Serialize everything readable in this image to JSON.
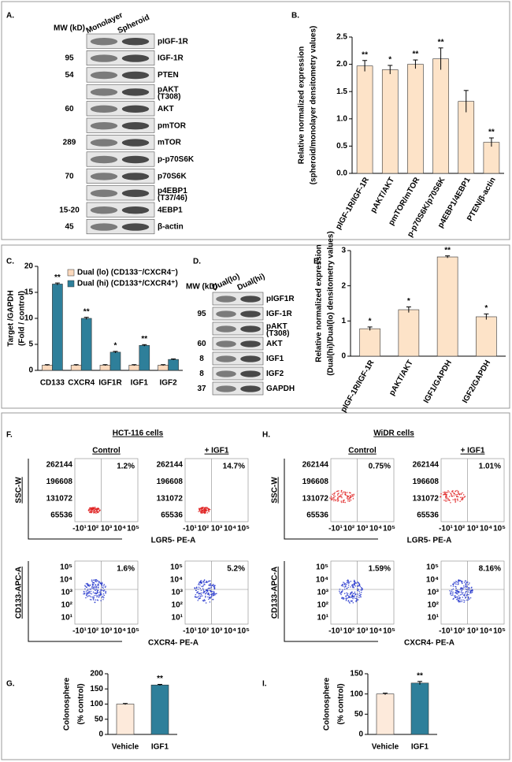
{
  "chart_data": [
    {
      "type": "bar",
      "panel": "B.",
      "y_label": "Relative normalized expression",
      "y_sublabel": "(spheroid/monolayer densitometry values)",
      "categories": [
        "pIGF-1R/IGF-1R",
        "pAKT/AKT",
        "pmTOR/mTOR",
        "p-p70S6K/p70S6K",
        "p4EBP1/4EBP1",
        "PTEN/β-actin"
      ],
      "values": [
        1.97,
        1.9,
        2.0,
        2.1,
        1.32,
        0.57
      ],
      "errors": [
        0.1,
        0.08,
        0.08,
        0.2,
        0.2,
        0.08
      ],
      "annotations": [
        "**",
        "*",
        "**",
        "**",
        null,
        "**"
      ],
      "color": "#fde3c8",
      "ylim": [
        0,
        2.5
      ],
      "yticks": [
        {
          "value": 0,
          "label": "0.0"
        },
        0.5,
        {
          "value": 1,
          "label": "1.0"
        },
        1.5,
        {
          "value": 2,
          "label": "2.0"
        },
        2.5
      ]
    },
    {
      "type": "bar",
      "panel": "C.",
      "y_label": "Target /GAPDH",
      "y_sublabel": "(Fold / control)",
      "categories": [
        "CD133",
        "CXCR4",
        "IGF1R",
        "IGF1",
        "IGF2"
      ],
      "series": [
        {
          "name": "Dual (lo) (CD133⁻/CXCR4⁻)",
          "color": "#fbd9bd",
          "values": [
            1,
            1,
            1,
            1,
            1
          ],
          "errors": [
            0.1,
            0.1,
            0.1,
            0.1,
            0.1
          ]
        },
        {
          "name": "Dual (hi) (CD133⁺/CXCR4⁺)",
          "color": "#2e7f9a",
          "values": [
            16.6,
            10,
            3.5,
            4.8,
            2.1
          ],
          "errors": [
            0.2,
            0.2,
            0.15,
            0.15,
            0.1
          ]
        }
      ],
      "annotations": [
        "**",
        "**",
        "*",
        "**",
        null
      ],
      "ylim": [
        0,
        20
      ],
      "yticks": [
        0,
        5,
        10,
        15,
        20
      ]
    },
    {
      "type": "bar",
      "panel": "E.",
      "y_label": "Relative normalized expression",
      "y_sublabel": "(Dual(hi)/Dual(lo) densitometry values)",
      "categories": [
        "pIGF-1R/IGF-1R",
        "pAKT/AKT",
        "IGF1/GAPDH",
        "IGF2/GAPDH"
      ],
      "values": [
        0.78,
        1.32,
        2.82,
        1.12
      ],
      "errors": [
        0.05,
        0.08,
        0.03,
        0.08
      ],
      "annotations": [
        "*",
        "*",
        "**",
        "*"
      ],
      "color": "#fde3c8",
      "ylim": [
        0,
        3
      ],
      "yticks": [
        0,
        1,
        2,
        3
      ]
    },
    {
      "type": "bar",
      "panel": "G.",
      "y_label": "Colonosphere",
      "y_sublabel": "(% control)",
      "categories": [
        "Vehicle",
        "IGF1"
      ],
      "values": [
        100,
        163
      ],
      "errors": [
        2,
        2
      ],
      "annotations": [
        null,
        "**"
      ],
      "colors": [
        "#fdeadb",
        "#2e7f9a"
      ],
      "ylim": [
        0,
        200
      ],
      "yticks": [
        0,
        50,
        100,
        150,
        200
      ]
    },
    {
      "type": "bar",
      "panel": "I.",
      "y_label": "Colonosphere",
      "y_sublabel": "(% control)",
      "categories": [
        "Vehicle",
        "IGF1"
      ],
      "values": [
        100,
        127
      ],
      "errors": [
        2,
        4
      ],
      "annotations": [
        null,
        "**"
      ],
      "colors": [
        "#fdeadb",
        "#2e7f9a"
      ],
      "ylim": [
        0,
        150
      ],
      "yticks": [
        0,
        50,
        100,
        150
      ]
    }
  ],
  "blots": [
    {
      "panel": "A.",
      "mw_header": "MW (kD)",
      "lanes": [
        "Monolayer",
        "Spheroid"
      ],
      "rows": [
        {
          "label": "pIGF-1R",
          "mw": null
        },
        {
          "label": "IGF-1R",
          "mw": "95"
        },
        {
          "label": "PTEN",
          "mw": "54"
        },
        {
          "label": "pAKT",
          "sublabel": "(T308)",
          "mw": null
        },
        {
          "label": "AKT",
          "mw": "60"
        },
        {
          "label": "pmTOR",
          "mw": null
        },
        {
          "label": "mTOR",
          "mw": "289"
        },
        {
          "label": "p-p70S6K",
          "mw": null
        },
        {
          "label": "p70S6K",
          "mw": "70"
        },
        {
          "label": "p4EBP1",
          "sublabel": "(T37/46)",
          "mw": null
        },
        {
          "label": "4EBP1",
          "mw": "15-20"
        },
        {
          "label": "β-actin",
          "mw": "45"
        }
      ]
    },
    {
      "panel": "D.",
      "mw_header": "MW (kD)",
      "lanes": [
        "Dual(lo)",
        "Dual(hi)"
      ],
      "rows": [
        {
          "label": "pIGF1R",
          "mw": null
        },
        {
          "label": "IGF-1R",
          "mw": "95"
        },
        {
          "label": "pAKT",
          "sublabel": "(T308)",
          "mw": null
        },
        {
          "label": "AKT",
          "mw": "60"
        },
        {
          "label": "IGF1",
          "mw": "8"
        },
        {
          "label": "IGF2",
          "mw": "8"
        },
        {
          "label": "GAPDH",
          "mw": "37"
        }
      ]
    }
  ],
  "flow": [
    {
      "panel": "F.",
      "title": "HCT-116 cells",
      "conditions": [
        "Control",
        "+ IGF1"
      ],
      "top": {
        "y_label": "SSC-W",
        "y_ticks": [
          "262144",
          "196608",
          "131072",
          "65536"
        ],
        "x_label": "LGR5- PE-A",
        "x_ticks": [
          "-10¹",
          "10²",
          "10³",
          "10⁴",
          "10⁵"
        ],
        "percents": [
          "1.2%",
          "14.7%"
        ]
      },
      "bottom": {
        "y_label": "CD133-APC-A",
        "y_ticks": [
          "10⁵",
          "10⁴",
          "10³",
          "10²",
          "10¹"
        ],
        "x_label": "CXCR4- PE-A",
        "x_ticks": [
          "-10¹",
          "10²",
          "10³",
          "10⁴",
          "10⁵"
        ],
        "percents": [
          "1.6%",
          "5.2%"
        ]
      }
    },
    {
      "panel": "H.",
      "title": "WiDR cells",
      "conditions": [
        "Control",
        "+ IGF1"
      ],
      "top": {
        "y_label": "SSC-W",
        "y_ticks": [
          "262144",
          "196608",
          "131072",
          "65536"
        ],
        "x_label": "LGR5- PE-A",
        "x_ticks": [
          "-10¹",
          "10²",
          "10³",
          "10⁴",
          "10⁵"
        ],
        "percents": [
          "0.75%",
          "1.01%"
        ]
      },
      "bottom": {
        "y_label": "CD133-APC-A",
        "y_ticks": [
          "10⁵",
          "10⁴",
          "10³",
          "10²",
          "10¹"
        ],
        "x_label": "CXCR4- PE-A",
        "x_ticks": [
          "-10¹",
          "10²",
          "10³",
          "10⁴",
          "10⁵"
        ],
        "percents": [
          "1.59%",
          "8.16%"
        ]
      }
    }
  ]
}
